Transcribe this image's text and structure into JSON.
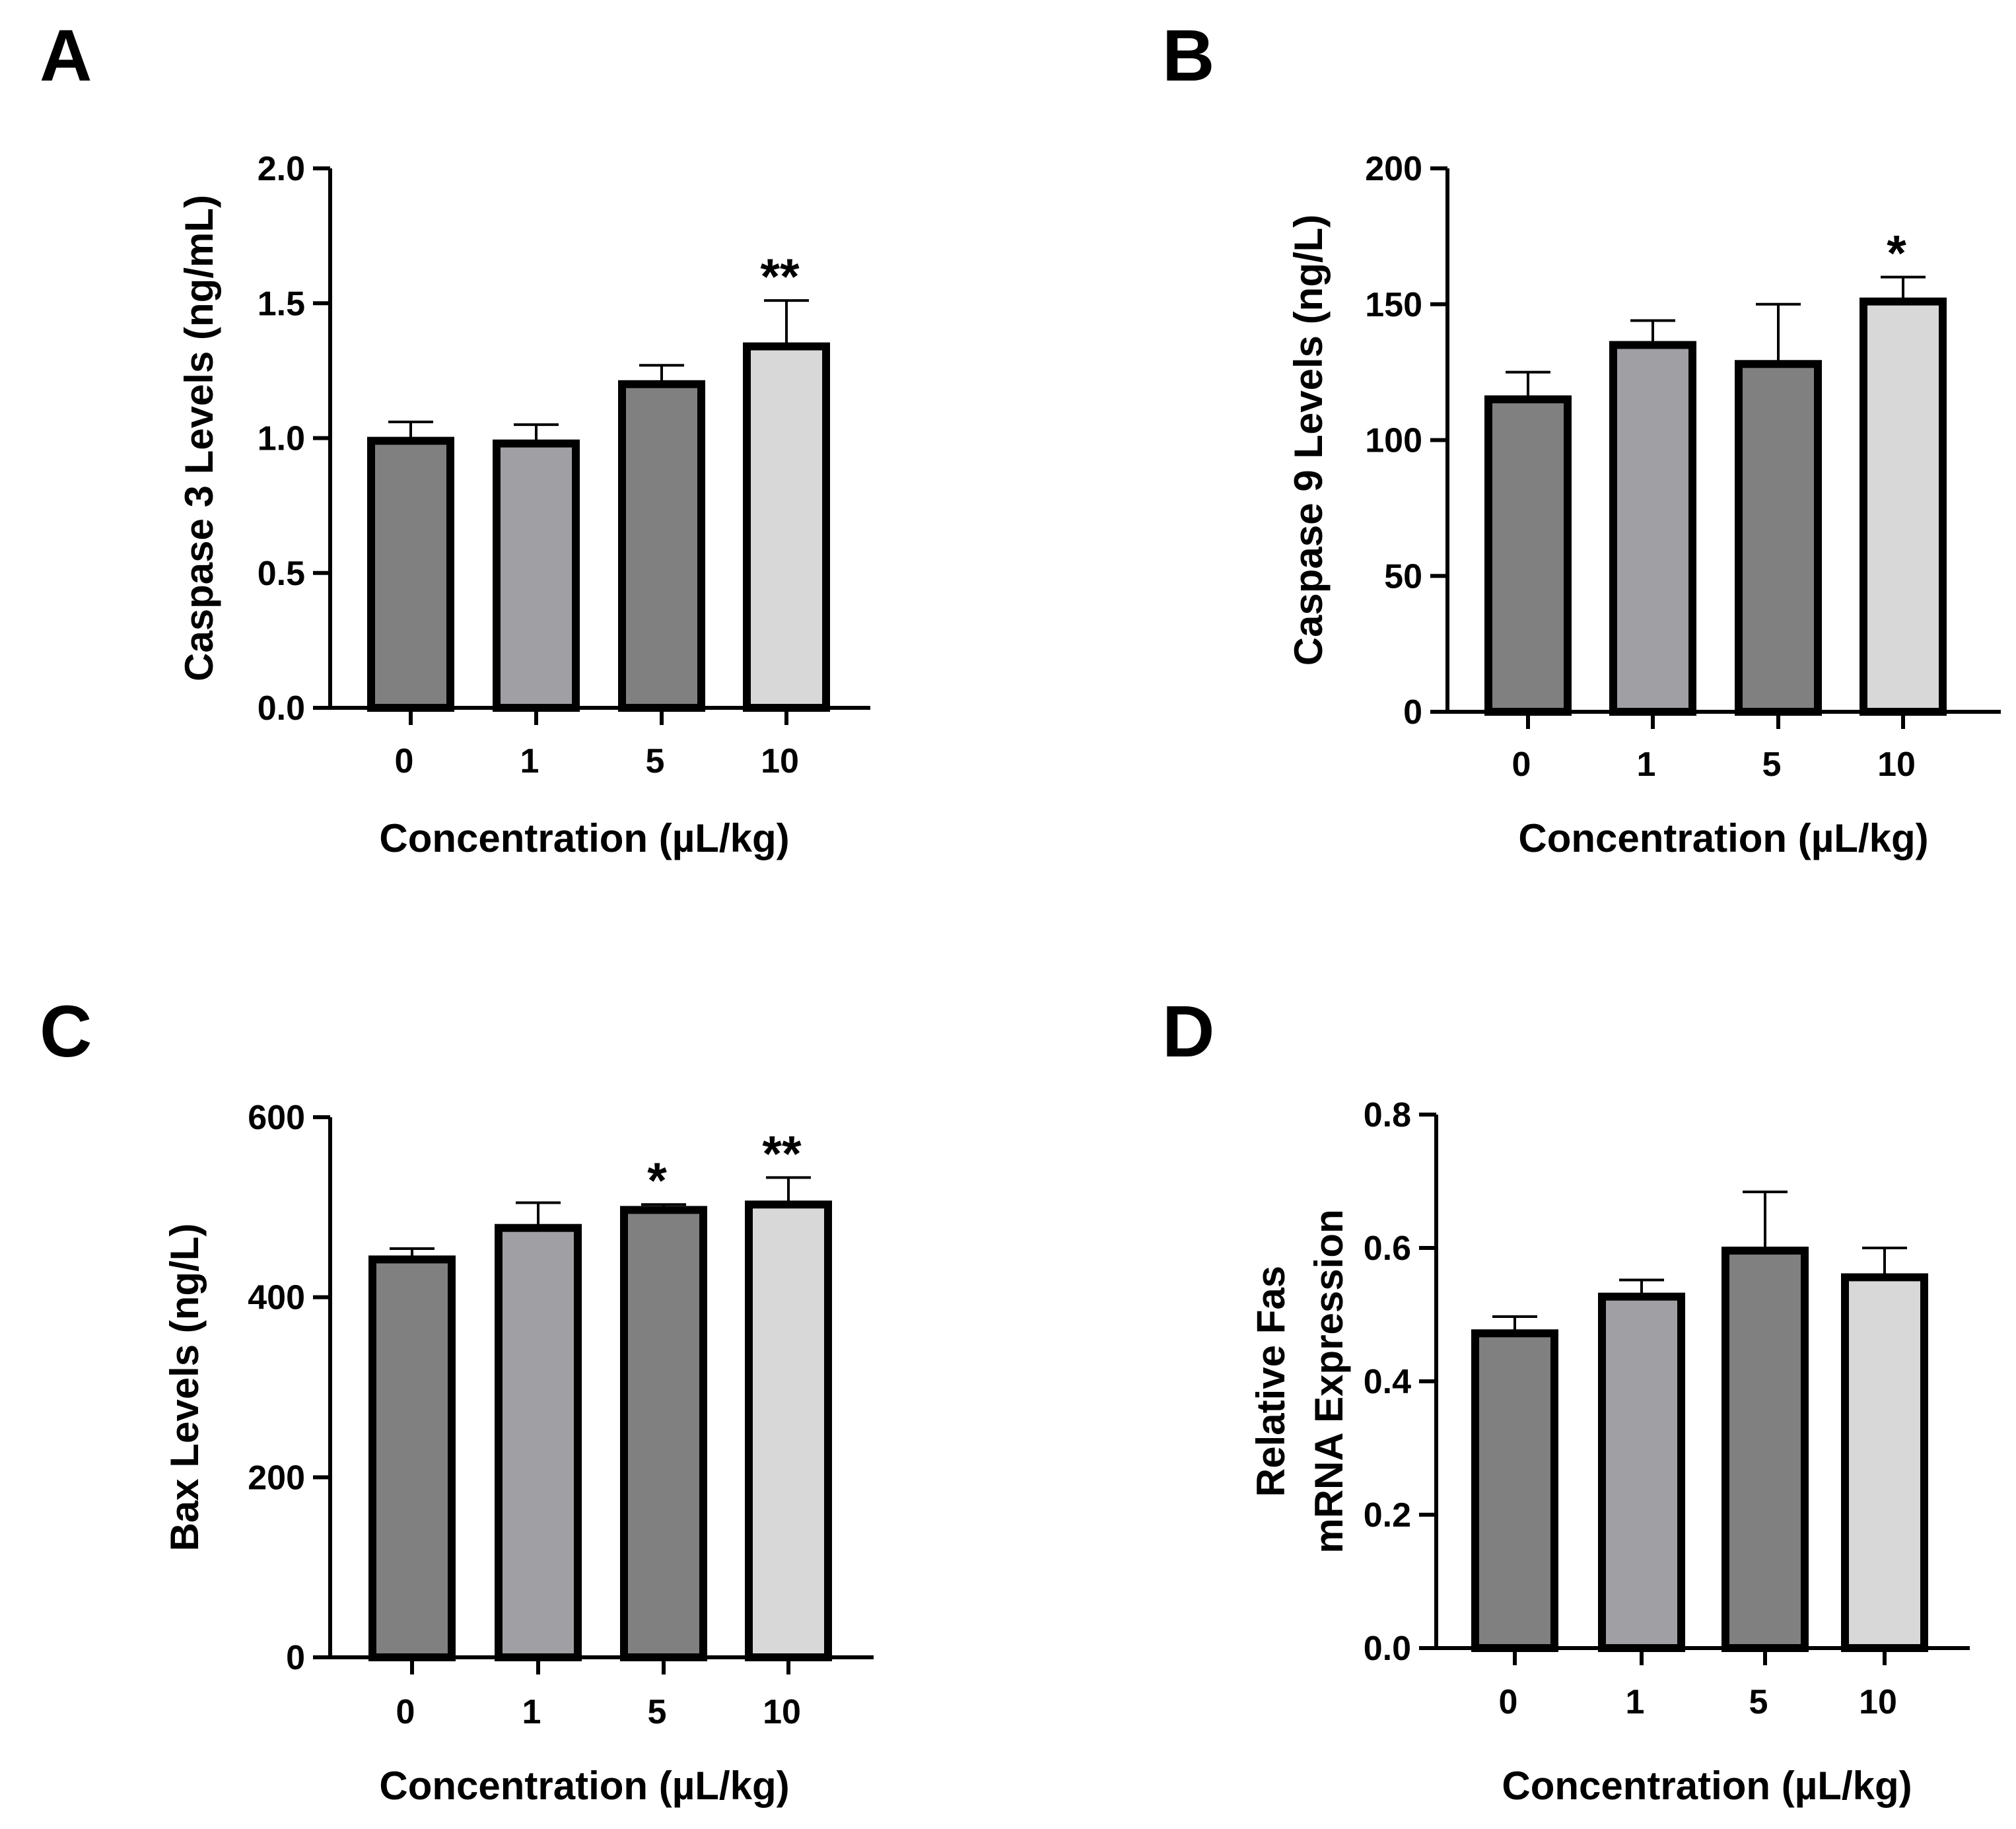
{
  "chart_data": [
    {
      "panel": "A",
      "type": "bar",
      "categories": [
        "0",
        "1",
        "5",
        "10"
      ],
      "values": [
        0.99,
        0.98,
        1.2,
        1.34
      ],
      "errors": [
        0.07,
        0.07,
        0.07,
        0.17
      ],
      "significance": [
        "",
        "",
        "",
        "**"
      ],
      "colors": [
        "#808080",
        "#a0a0a4",
        "#808080",
        "#d8d8d8"
      ],
      "ylabel_lines": [
        "Caspase 3 Levels (ng/mL)"
      ],
      "xlabel": "Concentration (µL/kg)",
      "ylim": [
        0,
        2.0
      ],
      "yticks": [
        "0.0",
        "0.5",
        "1.0",
        "1.5",
        "2.0"
      ]
    },
    {
      "panel": "B",
      "type": "bar",
      "categories": [
        "0",
        "1",
        "5",
        "10"
      ],
      "values": [
        115,
        135,
        128,
        151
      ],
      "errors": [
        10,
        9,
        22,
        9
      ],
      "significance": [
        "",
        "",
        "",
        "*"
      ],
      "colors": [
        "#808080",
        "#a0a0a4",
        "#808080",
        "#d8d8d8"
      ],
      "ylabel_lines": [
        "Caspase 9 Levels (ng/L)"
      ],
      "xlabel": "Concentration (µL/kg)",
      "ylim": [
        0,
        200
      ],
      "yticks": [
        "0",
        "50",
        "100",
        "150",
        "200"
      ]
    },
    {
      "panel": "C",
      "type": "bar",
      "categories": [
        "0",
        "1",
        "5",
        "10"
      ],
      "values": [
        442,
        477,
        497,
        503
      ],
      "errors": [
        12,
        28,
        6,
        30
      ],
      "significance": [
        "",
        "",
        "*",
        "**"
      ],
      "colors": [
        "#808080",
        "#a0a0a4",
        "#808080",
        "#d8d8d8"
      ],
      "ylabel_lines": [
        "Bax Levels (ng/L)"
      ],
      "xlabel": "Concentration (µL/kg)",
      "ylim": [
        0,
        600
      ],
      "yticks": [
        "0",
        "200",
        "400",
        "600"
      ]
    },
    {
      "panel": "D",
      "type": "bar",
      "categories": [
        "0",
        "1",
        "5",
        "10"
      ],
      "values": [
        0.472,
        0.527,
        0.596,
        0.556
      ],
      "errors": [
        0.025,
        0.025,
        0.088,
        0.044
      ],
      "significance": [
        "",
        "",
        "",
        ""
      ],
      "colors": [
        "#808080",
        "#a0a0a4",
        "#808080",
        "#d8d8d8"
      ],
      "ylabel_lines": [
        "Relative Fas",
        "mRNA Expression"
      ],
      "xlabel": "Concentration (µL/kg)",
      "ylim": [
        0,
        0.8
      ],
      "yticks": [
        "0.0",
        "0.2",
        "0.4",
        "0.6",
        "0.8"
      ]
    }
  ]
}
